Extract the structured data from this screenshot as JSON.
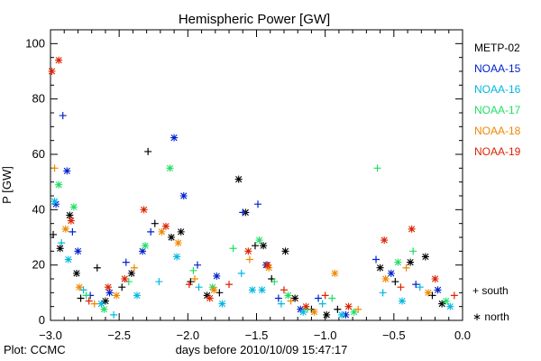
{
  "chart_data": {
    "type": "scatter",
    "title": "Hemispheric Power [GW]",
    "xlabel": "days before 2010/10/09 15:47:17",
    "ylabel": "P [GW]",
    "footer": "Plot: CCMC",
    "xlim": [
      -3.0,
      0.0
    ],
    "ylim": [
      0,
      105
    ],
    "x_ticks": [
      -3.0,
      -2.5,
      -2.0,
      -1.5,
      -1.0,
      -0.5,
      0.0
    ],
    "x_tick_labels": [
      "−3.0",
      "−2.5",
      "−2.0",
      "−1.5",
      "−1.0",
      "−0.5",
      "0.0"
    ],
    "y_ticks": [
      0,
      20,
      40,
      60,
      80,
      100
    ],
    "y_tick_labels": [
      "0",
      "20",
      "40",
      "60",
      "80",
      "100"
    ],
    "grid": false,
    "legend_position": "right",
    "hemisphere_legend": [
      {
        "symbol": "+",
        "label": "+ south"
      },
      {
        "symbol": "*",
        "label": "∗ north"
      }
    ],
    "series": [
      {
        "name": "METP-02",
        "color": "#000000",
        "points": [
          {
            "x": -2.98,
            "y": 31,
            "hemi": "south"
          },
          {
            "x": -2.93,
            "y": 26,
            "hemi": "north"
          },
          {
            "x": -2.86,
            "y": 38,
            "hemi": "north"
          },
          {
            "x": -2.81,
            "y": 17,
            "hemi": "north"
          },
          {
            "x": -2.78,
            "y": 8,
            "hemi": "south"
          },
          {
            "x": -2.66,
            "y": 19,
            "hemi": "south"
          },
          {
            "x": -2.6,
            "y": 7,
            "hemi": "north"
          },
          {
            "x": -2.48,
            "y": 12,
            "hemi": "south"
          },
          {
            "x": -2.41,
            "y": 17,
            "hemi": "north"
          },
          {
            "x": -2.29,
            "y": 61,
            "hemi": "south"
          },
          {
            "x": -2.24,
            "y": 35,
            "hemi": "south"
          },
          {
            "x": -2.12,
            "y": 30,
            "hemi": "north"
          },
          {
            "x": -2.05,
            "y": 32,
            "hemi": "north"
          },
          {
            "x": -1.98,
            "y": 14,
            "hemi": "south"
          },
          {
            "x": -1.86,
            "y": 9,
            "hemi": "north"
          },
          {
            "x": -1.77,
            "y": 10,
            "hemi": "south"
          },
          {
            "x": -1.63,
            "y": 51,
            "hemi": "north"
          },
          {
            "x": -1.58,
            "y": 39,
            "hemi": "north"
          },
          {
            "x": -1.51,
            "y": 27,
            "hemi": "south"
          },
          {
            "x": -1.45,
            "y": 27,
            "hemi": "north"
          },
          {
            "x": -1.39,
            "y": 15,
            "hemi": "south"
          },
          {
            "x": -1.29,
            "y": 25,
            "hemi": "north"
          },
          {
            "x": -1.22,
            "y": 8,
            "hemi": "north"
          },
          {
            "x": -1.1,
            "y": 4,
            "hemi": "south"
          },
          {
            "x": -0.99,
            "y": 2,
            "hemi": "north"
          },
          {
            "x": -0.91,
            "y": 4,
            "hemi": "south"
          },
          {
            "x": -0.6,
            "y": 19,
            "hemi": "north"
          },
          {
            "x": -0.49,
            "y": 14,
            "hemi": "south"
          },
          {
            "x": -0.38,
            "y": 21,
            "hemi": "north"
          },
          {
            "x": -0.27,
            "y": 23,
            "hemi": "north"
          },
          {
            "x": -0.22,
            "y": 9,
            "hemi": "south"
          },
          {
            "x": -0.15,
            "y": 6,
            "hemi": "north"
          }
        ]
      },
      {
        "name": "NOAA-15",
        "color": "#0022cc",
        "points": [
          {
            "x": -2.96,
            "y": 42,
            "hemi": "north"
          },
          {
            "x": -2.91,
            "y": 74,
            "hemi": "south"
          },
          {
            "x": -2.88,
            "y": 54,
            "hemi": "north"
          },
          {
            "x": -2.84,
            "y": 32,
            "hemi": "south"
          },
          {
            "x": -2.8,
            "y": 25,
            "hemi": "north"
          },
          {
            "x": -2.71,
            "y": 9,
            "hemi": "south"
          },
          {
            "x": -2.57,
            "y": 10,
            "hemi": "north"
          },
          {
            "x": -2.45,
            "y": 21,
            "hemi": "south"
          },
          {
            "x": -2.33,
            "y": 25,
            "hemi": "north"
          },
          {
            "x": -2.27,
            "y": 32,
            "hemi": "south"
          },
          {
            "x": -2.1,
            "y": 66,
            "hemi": "north"
          },
          {
            "x": -2.03,
            "y": 45,
            "hemi": "north"
          },
          {
            "x": -1.93,
            "y": 20,
            "hemi": "south"
          },
          {
            "x": -1.79,
            "y": 16,
            "hemi": "north"
          },
          {
            "x": -1.6,
            "y": 39,
            "hemi": "south"
          },
          {
            "x": -1.49,
            "y": 42,
            "hemi": "south"
          },
          {
            "x": -1.43,
            "y": 20,
            "hemi": "north"
          },
          {
            "x": -1.34,
            "y": 8,
            "hemi": "south"
          },
          {
            "x": -1.18,
            "y": 4,
            "hemi": "north"
          },
          {
            "x": -1.05,
            "y": 8,
            "hemi": "south"
          },
          {
            "x": -0.85,
            "y": 2,
            "hemi": "north"
          },
          {
            "x": -0.63,
            "y": 22,
            "hemi": "south"
          },
          {
            "x": -0.52,
            "y": 17,
            "hemi": "north"
          },
          {
            "x": -0.34,
            "y": 13,
            "hemi": "south"
          },
          {
            "x": -0.18,
            "y": 11,
            "hemi": "north"
          }
        ]
      },
      {
        "name": "NOAA-16",
        "color": "#00b8e0",
        "points": [
          {
            "x": -2.97,
            "y": 43,
            "hemi": "north"
          },
          {
            "x": -2.92,
            "y": 28,
            "hemi": "south"
          },
          {
            "x": -2.87,
            "y": 22,
            "hemi": "north"
          },
          {
            "x": -2.76,
            "y": 11,
            "hemi": "south"
          },
          {
            "x": -2.63,
            "y": 6,
            "hemi": "north"
          },
          {
            "x": -2.54,
            "y": 2,
            "hemi": "south"
          },
          {
            "x": -2.37,
            "y": 9,
            "hemi": "north"
          },
          {
            "x": -2.21,
            "y": 14,
            "hemi": "south"
          },
          {
            "x": -2.08,
            "y": 23,
            "hemi": "north"
          },
          {
            "x": -1.92,
            "y": 12,
            "hemi": "south"
          },
          {
            "x": -1.75,
            "y": 6,
            "hemi": "north"
          },
          {
            "x": -1.61,
            "y": 17,
            "hemi": "south"
          },
          {
            "x": -1.53,
            "y": 11,
            "hemi": "north"
          },
          {
            "x": -1.46,
            "y": 11,
            "hemi": "north"
          },
          {
            "x": -1.32,
            "y": 6,
            "hemi": "south"
          },
          {
            "x": -1.16,
            "y": 3,
            "hemi": "north"
          },
          {
            "x": -1.02,
            "y": 6,
            "hemi": "south"
          },
          {
            "x": -0.88,
            "y": 2,
            "hemi": "north"
          },
          {
            "x": -0.58,
            "y": 10,
            "hemi": "south"
          },
          {
            "x": -0.44,
            "y": 7,
            "hemi": "north"
          },
          {
            "x": -0.31,
            "y": 12,
            "hemi": "south"
          },
          {
            "x": -0.09,
            "y": 5,
            "hemi": "north"
          }
        ]
      },
      {
        "name": "NOAA-17",
        "color": "#22dd66",
        "points": [
          {
            "x": -2.94,
            "y": 49,
            "hemi": "north"
          },
          {
            "x": -2.83,
            "y": 41,
            "hemi": "north"
          },
          {
            "x": -2.74,
            "y": 9,
            "hemi": "south"
          },
          {
            "x": -2.61,
            "y": 4,
            "hemi": "north"
          },
          {
            "x": -2.43,
            "y": 14,
            "hemi": "south"
          },
          {
            "x": -2.31,
            "y": 27,
            "hemi": "north"
          },
          {
            "x": -2.13,
            "y": 55,
            "hemi": "north"
          },
          {
            "x": -1.96,
            "y": 18,
            "hemi": "south"
          },
          {
            "x": -1.82,
            "y": 12,
            "hemi": "north"
          },
          {
            "x": -1.67,
            "y": 26,
            "hemi": "south"
          },
          {
            "x": -1.48,
            "y": 29,
            "hemi": "north"
          },
          {
            "x": -1.37,
            "y": 14,
            "hemi": "south"
          },
          {
            "x": -1.27,
            "y": 9,
            "hemi": "north"
          },
          {
            "x": -1.13,
            "y": 4,
            "hemi": "south"
          },
          {
            "x": -0.95,
            "y": 8,
            "hemi": "south"
          },
          {
            "x": -0.79,
            "y": 3,
            "hemi": "north"
          },
          {
            "x": -0.62,
            "y": 55,
            "hemi": "south"
          },
          {
            "x": -0.47,
            "y": 21,
            "hemi": "north"
          },
          {
            "x": -0.36,
            "y": 25,
            "hemi": "south"
          },
          {
            "x": -0.12,
            "y": 7,
            "hemi": "north"
          }
        ]
      },
      {
        "name": "NOAA-18",
        "color": "#ee8800",
        "points": [
          {
            "x": -2.97,
            "y": 55,
            "hemi": "south"
          },
          {
            "x": -2.89,
            "y": 33,
            "hemi": "north"
          },
          {
            "x": -2.79,
            "y": 12,
            "hemi": "north"
          },
          {
            "x": -2.68,
            "y": 6,
            "hemi": "south"
          },
          {
            "x": -2.52,
            "y": 9,
            "hemi": "north"
          },
          {
            "x": -2.39,
            "y": 19,
            "hemi": "south"
          },
          {
            "x": -2.19,
            "y": 32,
            "hemi": "north"
          },
          {
            "x": -2.07,
            "y": 28,
            "hemi": "north"
          },
          {
            "x": -1.95,
            "y": 15,
            "hemi": "south"
          },
          {
            "x": -1.81,
            "y": 11,
            "hemi": "north"
          },
          {
            "x": -1.55,
            "y": 22,
            "hemi": "south"
          },
          {
            "x": -1.41,
            "y": 19,
            "hemi": "north"
          },
          {
            "x": -1.25,
            "y": 7,
            "hemi": "south"
          },
          {
            "x": -1.08,
            "y": 3,
            "hemi": "north"
          },
          {
            "x": -0.93,
            "y": 17,
            "hemi": "north"
          },
          {
            "x": -0.76,
            "y": 4,
            "hemi": "south"
          },
          {
            "x": -0.56,
            "y": 15,
            "hemi": "north"
          },
          {
            "x": -0.41,
            "y": 19,
            "hemi": "south"
          },
          {
            "x": -0.25,
            "y": 10,
            "hemi": "north"
          }
        ]
      },
      {
        "name": "NOAA-19",
        "color": "#dd2200",
        "points": [
          {
            "x": -2.99,
            "y": 90,
            "hemi": "north"
          },
          {
            "x": -2.94,
            "y": 94,
            "hemi": "north"
          },
          {
            "x": -2.85,
            "y": 36,
            "hemi": "north"
          },
          {
            "x": -2.72,
            "y": 7,
            "hemi": "south"
          },
          {
            "x": -2.58,
            "y": 12,
            "hemi": "north"
          },
          {
            "x": -2.46,
            "y": 15,
            "hemi": "north"
          },
          {
            "x": -2.32,
            "y": 40,
            "hemi": "north"
          },
          {
            "x": -2.16,
            "y": 34,
            "hemi": "north"
          },
          {
            "x": -1.99,
            "y": 13,
            "hemi": "south"
          },
          {
            "x": -1.84,
            "y": 8,
            "hemi": "north"
          },
          {
            "x": -1.7,
            "y": 13,
            "hemi": "south"
          },
          {
            "x": -1.56,
            "y": 25,
            "hemi": "north"
          },
          {
            "x": -1.42,
            "y": 20,
            "hemi": "north"
          },
          {
            "x": -1.3,
            "y": 11,
            "hemi": "south"
          },
          {
            "x": -1.14,
            "y": 5,
            "hemi": "north"
          },
          {
            "x": -1.0,
            "y": 9,
            "hemi": "south"
          },
          {
            "x": -0.83,
            "y": 5,
            "hemi": "north"
          },
          {
            "x": -0.57,
            "y": 29,
            "hemi": "north"
          },
          {
            "x": -0.45,
            "y": 12,
            "hemi": "south"
          },
          {
            "x": -0.37,
            "y": 33,
            "hemi": "north"
          },
          {
            "x": -0.2,
            "y": 15,
            "hemi": "north"
          },
          {
            "x": -0.06,
            "y": 9,
            "hemi": "south"
          }
        ]
      }
    ]
  }
}
